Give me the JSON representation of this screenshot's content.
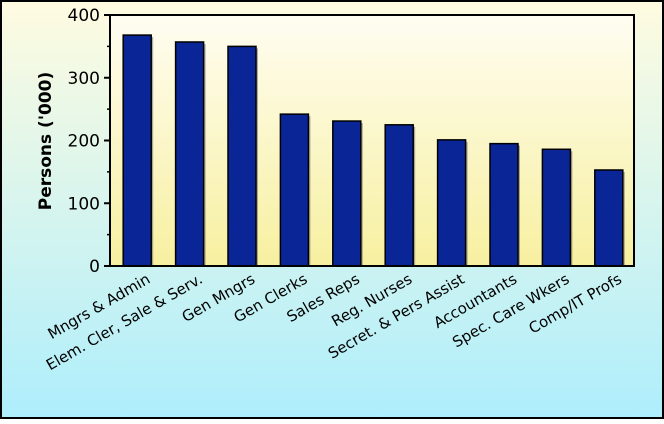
{
  "chart_data": {
    "type": "bar",
    "title": "",
    "xlabel": "",
    "ylabel": "Persons ('000)",
    "ylim": [
      0,
      400
    ],
    "yticks": [
      0,
      100,
      200,
      300,
      400
    ],
    "grid": false,
    "legend": "none",
    "categories": [
      "Mngrs & Admin",
      "Elem. Cler, Sale & Serv.",
      "Gen Mngrs",
      "Gen Clerks",
      "Sales Reps",
      "Reg. Nurses",
      "Secret. & Pers Assist",
      "Accountants",
      "Spec. Care Wkers",
      "Comp/IT Profs"
    ],
    "values": [
      368,
      357,
      350,
      242,
      231,
      225,
      201,
      195,
      186,
      153
    ],
    "colors": {
      "bar_fill": "#0a2596",
      "bar_edge": "#000000",
      "background_top": "#fffbe0",
      "background_bottom": "#aeeefc",
      "plot_top": "#fffdf2",
      "plot_bottom": "#f7f0a0",
      "text": "#000000"
    }
  }
}
